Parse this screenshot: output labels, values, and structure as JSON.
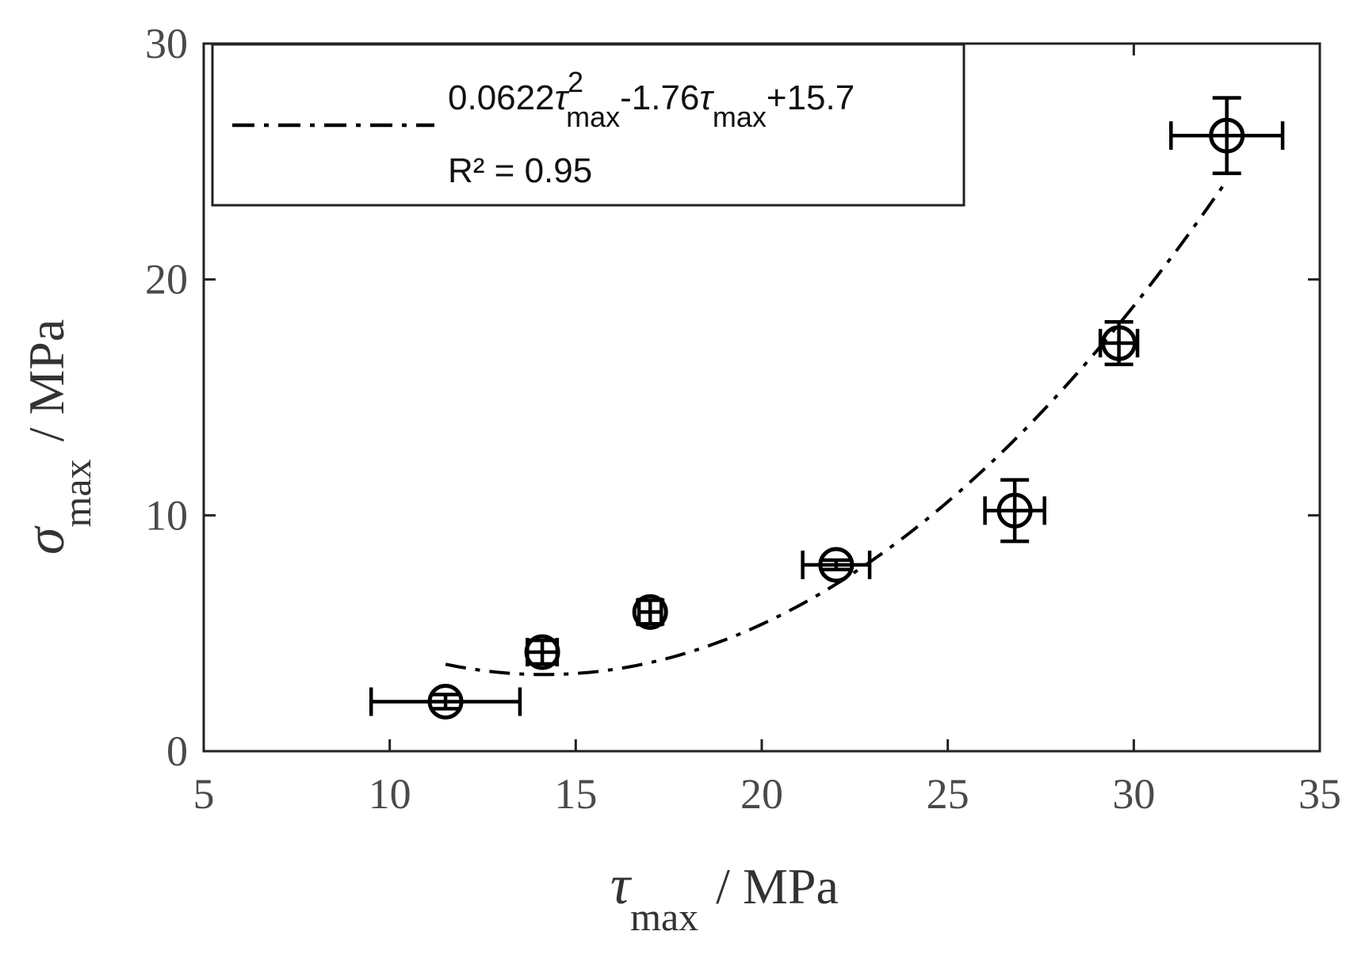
{
  "chart_data": {
    "type": "scatter",
    "xlabel": {
      "symbol": "τ",
      "sub": "max",
      "unit": "/ MPa"
    },
    "ylabel": {
      "symbol": "σ",
      "sub": "max",
      "unit": "/ MPa"
    },
    "xlim": [
      5,
      35
    ],
    "ylim": [
      0,
      30
    ],
    "xticks": [
      "5",
      "10",
      "15",
      "20",
      "25",
      "30",
      "35"
    ],
    "yticks": [
      "0",
      "10",
      "20",
      "30"
    ],
    "grid": false,
    "legend": {
      "placement": "top-left",
      "fit_label": {
        "part1": "0.0622",
        "sym1": "τ",
        "sup": "2",
        "sub1": "max",
        "part2": "-1.76",
        "sym2": "τ",
        "sub2": "max",
        "part3": "+15.7"
      },
      "r2_label": "R² = 0.95"
    },
    "fit": {
      "a": 0.0622,
      "b": -1.76,
      "c": 15.7,
      "x_range": [
        11.5,
        32.5
      ],
      "style": "dash-dot"
    },
    "points": [
      {
        "x": 11.5,
        "y": 2.1,
        "xerr": 2.0,
        "yerr": 0.3
      },
      {
        "x": 14.1,
        "y": 4.2,
        "xerr": 0.4,
        "yerr": 0.5
      },
      {
        "x": 17.0,
        "y": 5.9,
        "xerr": 0.3,
        "yerr": 0.5
      },
      {
        "x": 22.0,
        "y": 7.9,
        "xerr": 0.9,
        "yerr": 0.2
      },
      {
        "x": 26.8,
        "y": 10.2,
        "xerr": 0.8,
        "yerr": 1.3
      },
      {
        "x": 29.6,
        "y": 17.3,
        "xerr": 0.5,
        "yerr": 0.9
      },
      {
        "x": 32.5,
        "y": 26.1,
        "xerr": 1.5,
        "yerr": 1.6
      }
    ],
    "colors": {
      "marker": "#000000",
      "axis": "#222222",
      "text": "#4a4a4a"
    }
  }
}
